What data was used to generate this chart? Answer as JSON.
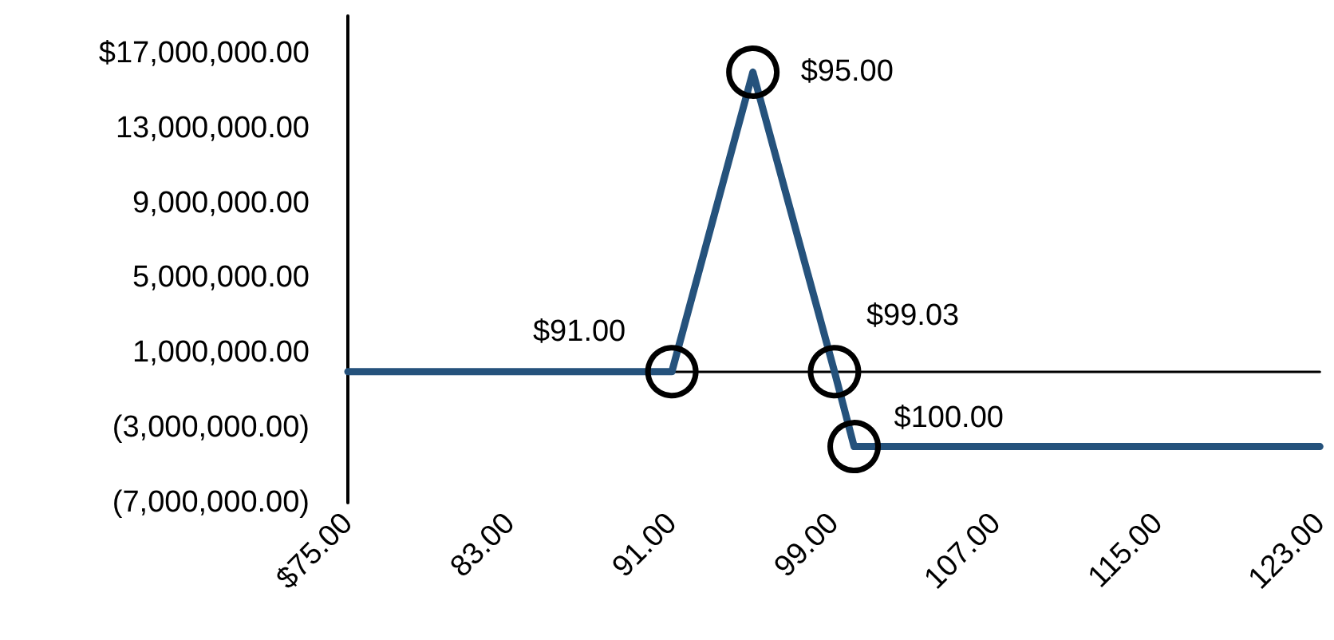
{
  "chart_data": {
    "type": "line",
    "xlim": [
      75,
      123
    ],
    "xticks": [
      {
        "value": 75,
        "label": "$75.00"
      },
      {
        "value": 83,
        "label": "83.00"
      },
      {
        "value": 91,
        "label": "91.00"
      },
      {
        "value": 99,
        "label": "99.00"
      },
      {
        "value": 107,
        "label": "107.00"
      },
      {
        "value": 115,
        "label": "115.00"
      },
      {
        "value": 123,
        "label": "123.00"
      }
    ],
    "ylim": [
      -7000000,
      19000000
    ],
    "yticks": [
      {
        "value": 17000000,
        "label": "$17,000,000.00"
      },
      {
        "value": 13000000,
        "label": "13,000,000.00"
      },
      {
        "value": 9000000,
        "label": "9,000,000.00"
      },
      {
        "value": 5000000,
        "label": "5,000,000.00"
      },
      {
        "value": 1000000,
        "label": "1,000,000.00"
      },
      {
        "value": -3000000,
        "label": "(3,000,000.00)"
      },
      {
        "value": -7000000,
        "label": "(7,000,000.00)"
      }
    ],
    "grid": false,
    "line_style": "solid",
    "series": [
      {
        "color": "#25527c",
        "marker": "none",
        "x": [
          75,
          91,
          95,
          99.03,
          100,
          123
        ],
        "values": [
          0,
          0,
          16000000,
          0,
          -4000000,
          -4000000
        ]
      },
      {
        "type": "scatter",
        "color": "#000000",
        "marker": "circle",
        "x": [
          91,
          95,
          99.03,
          100
        ],
        "values": [
          0,
          16000000,
          0,
          -4000000
        ]
      }
    ],
    "annotations": [
      {
        "text": "$91.00",
        "x": 91,
        "y": 0
      },
      {
        "text": "$95.00",
        "x": 95,
        "y": 16000000
      },
      {
        "text": "$99.03",
        "x": 99.03,
        "y": 0
      },
      {
        "text": "$100.00",
        "x": 100,
        "y": -4000000
      }
    ]
  }
}
